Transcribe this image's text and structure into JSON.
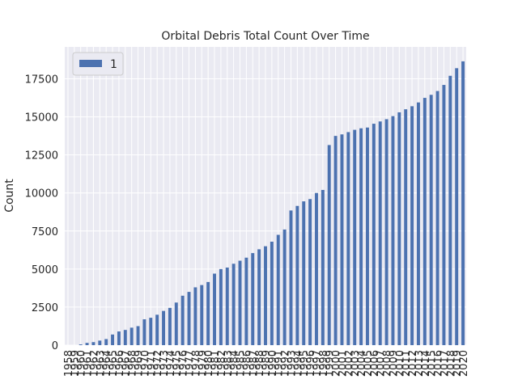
{
  "chart_data": {
    "type": "bar",
    "title": "Orbital Debris Total Count Over Time",
    "ylabel": "Count",
    "categories": [
      "1958",
      "1959",
      "1960",
      "1961",
      "1962",
      "1963",
      "1964",
      "1965",
      "1966",
      "1967",
      "1968",
      "1969",
      "1970",
      "1971",
      "1972",
      "1973",
      "1974",
      "1975",
      "1976",
      "1977",
      "1978",
      "1979",
      "1980",
      "1981",
      "1982",
      "1983",
      "1984",
      "1985",
      "1986",
      "1987",
      "1988",
      "1989",
      "1990",
      "1991",
      "1992",
      "1993",
      "1994",
      "1995",
      "1996",
      "1997",
      "1998",
      "1999",
      "2000",
      "2001",
      "2002",
      "2003",
      "2004",
      "2005",
      "2006",
      "2007",
      "2008",
      "2009",
      "2010",
      "2011",
      "2012",
      "2013",
      "2014",
      "2015",
      "2016",
      "2017",
      "2018",
      "2019",
      "2020"
    ],
    "series": [
      {
        "name": "1",
        "color": "#4c72b0",
        "values": [
          0,
          0,
          50,
          150,
          200,
          300,
          400,
          700,
          900,
          1000,
          1150,
          1250,
          1700,
          1800,
          2000,
          2250,
          2450,
          2800,
          3250,
          3500,
          3800,
          3950,
          4150,
          4700,
          5000,
          5100,
          5350,
          5550,
          5750,
          6050,
          6300,
          6500,
          6800,
          7250,
          7600,
          8850,
          9150,
          9450,
          9600,
          10000,
          10200,
          13150,
          13750,
          13850,
          14000,
          14150,
          14250,
          14300,
          14550,
          14700,
          14850,
          15050,
          15300,
          15500,
          15700,
          15950,
          16250,
          16450,
          16700,
          17100,
          17700,
          18200,
          18650
        ]
      }
    ],
    "ylim": [
      0,
      19600
    ],
    "yticks": [
      0,
      2500,
      5000,
      7500,
      10000,
      12500,
      15000,
      17500
    ],
    "grid": true,
    "legend": "upper left"
  }
}
